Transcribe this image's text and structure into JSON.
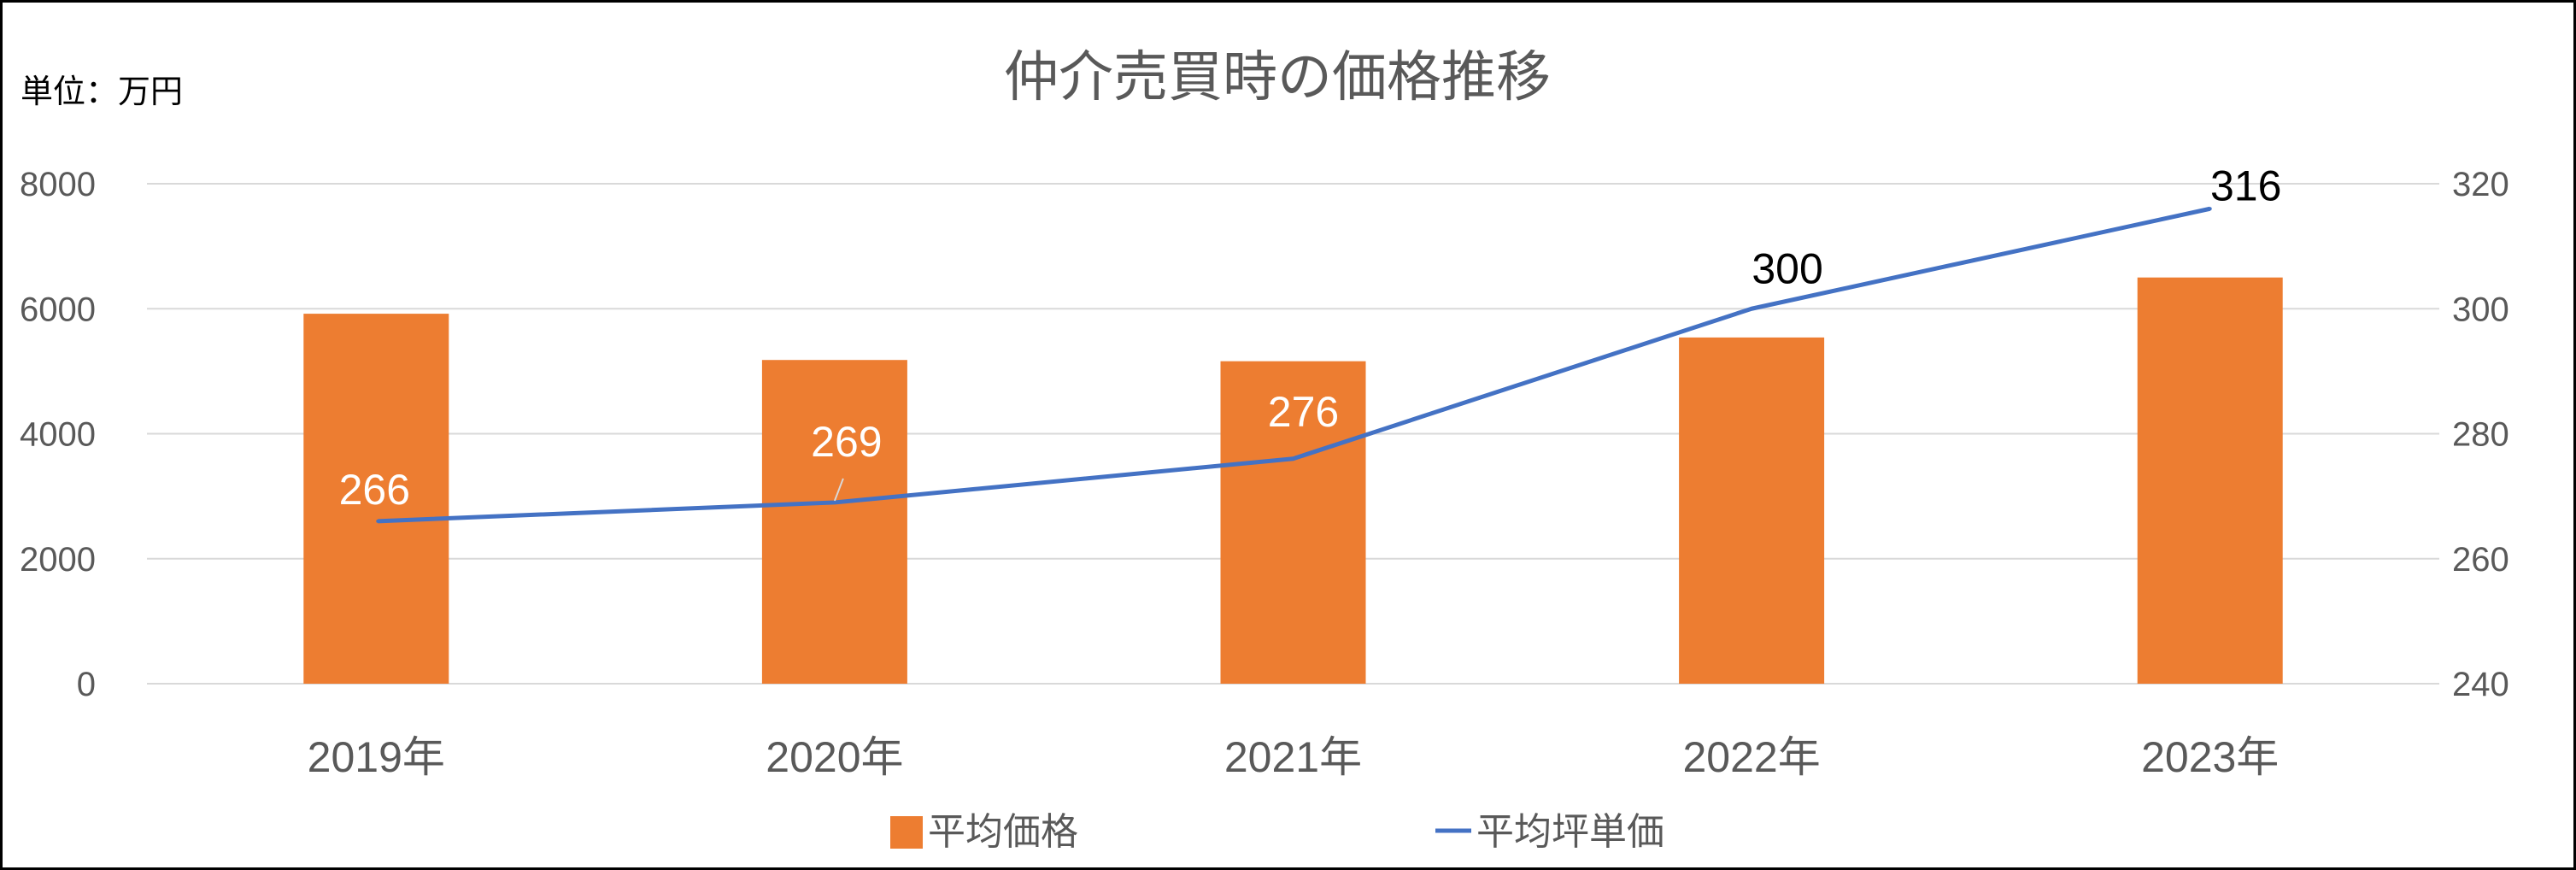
{
  "chart_data": {
    "type": "bar",
    "title": "仲介売買時の価格推移",
    "unit_label": "単位：万円",
    "categories": [
      "2019年",
      "2020年",
      "2021年",
      "2022年",
      "2023年"
    ],
    "series": [
      {
        "name": "平均価格",
        "type": "bar",
        "axis": "left",
        "color": "#ED7D31",
        "values": [
          5920,
          5180,
          5160,
          5540,
          6500
        ]
      },
      {
        "name": "平均坪単価",
        "type": "line",
        "axis": "right",
        "color": "#4472C4",
        "values": [
          266,
          269,
          276,
          300,
          316
        ],
        "data_labels": [
          "266",
          "269",
          "276",
          "300",
          "316"
        ]
      }
    ],
    "y_left": {
      "lim": [
        0,
        8000
      ],
      "ticks": [
        "0",
        "2000",
        "4000",
        "6000",
        "8000"
      ]
    },
    "y_right": {
      "lim": [
        240,
        320
      ],
      "ticks": [
        "240",
        "260",
        "280",
        "300",
        "320"
      ]
    },
    "grid": true,
    "legend_position": "bottom"
  }
}
